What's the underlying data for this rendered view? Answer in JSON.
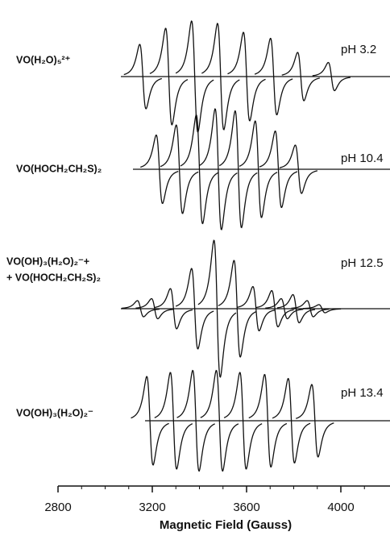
{
  "chart_data": {
    "type": "epr",
    "xlabel": "Magnetic Field (Gauss)",
    "xlim": [
      2800,
      4200
    ],
    "xticks": [
      2800,
      3200,
      3600,
      4000
    ],
    "minor_xticks": [
      2900,
      3000,
      3100,
      3300,
      3400,
      3500,
      3700,
      3800,
      3900,
      4100
    ],
    "color": "#111111",
    "series": [
      {
        "name": "VO(H₂O)₅²⁺",
        "annotation": "pH 3.2",
        "x": [
          3160,
          3270,
          3380,
          3490,
          3600,
          3715,
          3830,
          3960
        ],
        "values": [
          80,
          120,
          138,
          132,
          110,
          95,
          60,
          35
        ]
      },
      {
        "name": "VO(HOCH₂CH₂S)₂",
        "annotation": "pH 10.4",
        "x": [
          3230,
          3315,
          3400,
          3480,
          3565,
          3650,
          3735,
          3820
        ],
        "values": [
          85,
          110,
          135,
          150,
          145,
          120,
          95,
          60
        ]
      },
      {
        "name": [
          "VO(OH)₃(H₂O)₂⁻+",
          "+ VO(HOCH₂CH₂S)₂"
        ],
        "annotation": "pH 12.5",
        "x": [
          3150,
          3210,
          3290,
          3380,
          3475,
          3560,
          3640,
          3720,
          3760,
          3810,
          3870,
          3920
        ],
        "values": [
          20,
          25,
          50,
          100,
          170,
          120,
          55,
          45,
          25,
          35,
          20,
          10
        ]
      },
      {
        "name": "VO(OH)₃(H₂O)₂⁻",
        "annotation": "pH 13.4",
        "x": [
          3190,
          3290,
          3385,
          3485,
          3585,
          3690,
          3790,
          3890
        ],
        "values": [
          110,
          120,
          125,
          125,
          120,
          115,
          105,
          90
        ]
      }
    ]
  }
}
